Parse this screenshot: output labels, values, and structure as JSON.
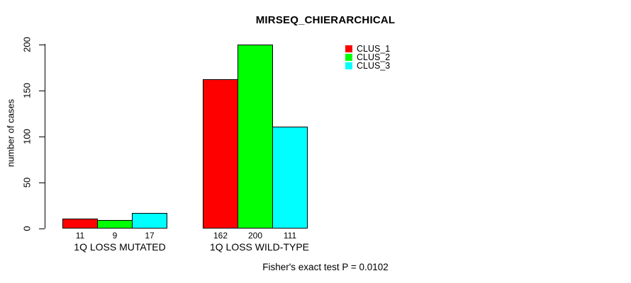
{
  "chart_data": {
    "type": "bar",
    "title": "MIRSEQ_CHIERARCHICAL",
    "xlabel": "",
    "ylabel": "number of cases",
    "categories": [
      "1Q LOSS MUTATED",
      "1Q LOSS WILD-TYPE"
    ],
    "series": [
      {
        "name": "CLUS_1",
        "color": "#ff0000",
        "values": [
          11,
          162
        ]
      },
      {
        "name": "CLUS_2",
        "color": "#00ff00",
        "values": [
          9,
          200
        ]
      },
      {
        "name": "CLUS_3",
        "color": "#00ffff",
        "values": [
          17,
          111
        ]
      }
    ],
    "bar_value_labels": [
      [
        11,
        9,
        17
      ],
      [
        162,
        200,
        111
      ]
    ],
    "ylim": [
      0,
      200
    ],
    "yticks": [
      0,
      50,
      100,
      150,
      200
    ],
    "grid": false,
    "legend_position": "top-right",
    "annotation": "Fisher's exact test P = 0.0102"
  },
  "colors": {
    "background": "#ffffff",
    "axis": "#000000",
    "text": "#000000",
    "bar_border": "#000000"
  }
}
